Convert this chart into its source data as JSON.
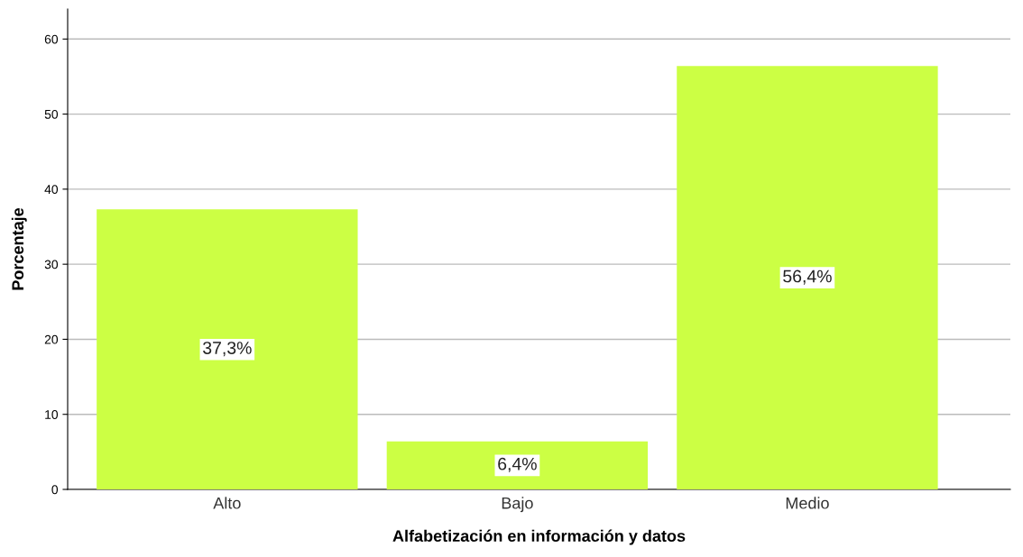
{
  "chart_data": {
    "type": "bar",
    "xlabel": "Alfabetización en información y datos",
    "ylabel": "Porcentaje",
    "categories": [
      "Alto",
      "Bajo",
      "Medio"
    ],
    "values": [
      37.3,
      6.4,
      56.4
    ],
    "value_labels": [
      "37,3%",
      "6,4%",
      "56,4%"
    ],
    "color": "#ccff44",
    "ylim": [
      0,
      64
    ],
    "yticks": [
      0,
      10,
      20,
      30,
      40,
      50,
      60
    ],
    "grid": "y",
    "legend": false
  }
}
